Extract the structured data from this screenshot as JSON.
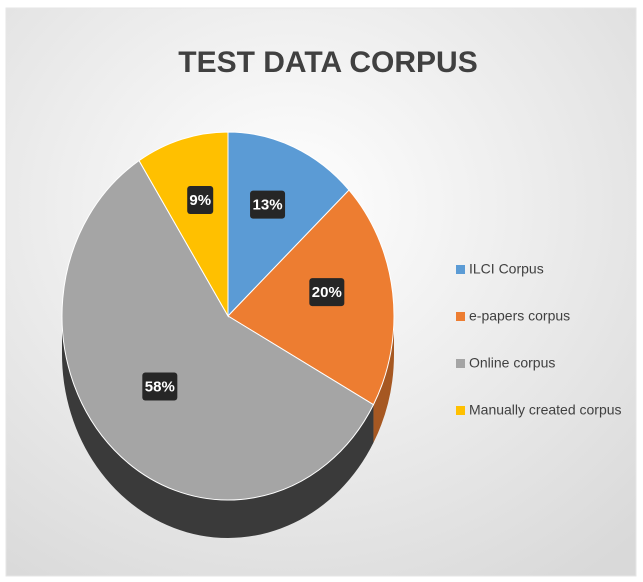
{
  "chart_data": {
    "type": "pie",
    "title": "TEST DATA CORPUS",
    "categories": [
      "ILCI Corpus",
      "e-papers corpus",
      "Online corpus",
      "Manually created corpus"
    ],
    "values": [
      13,
      20,
      58,
      9
    ],
    "value_labels": [
      "13%",
      "20%",
      "58%",
      "9%"
    ],
    "colors": [
      "#5b9bd5",
      "#ed7d31",
      "#a5a5a5",
      "#ffc000"
    ],
    "legend": "right"
  }
}
